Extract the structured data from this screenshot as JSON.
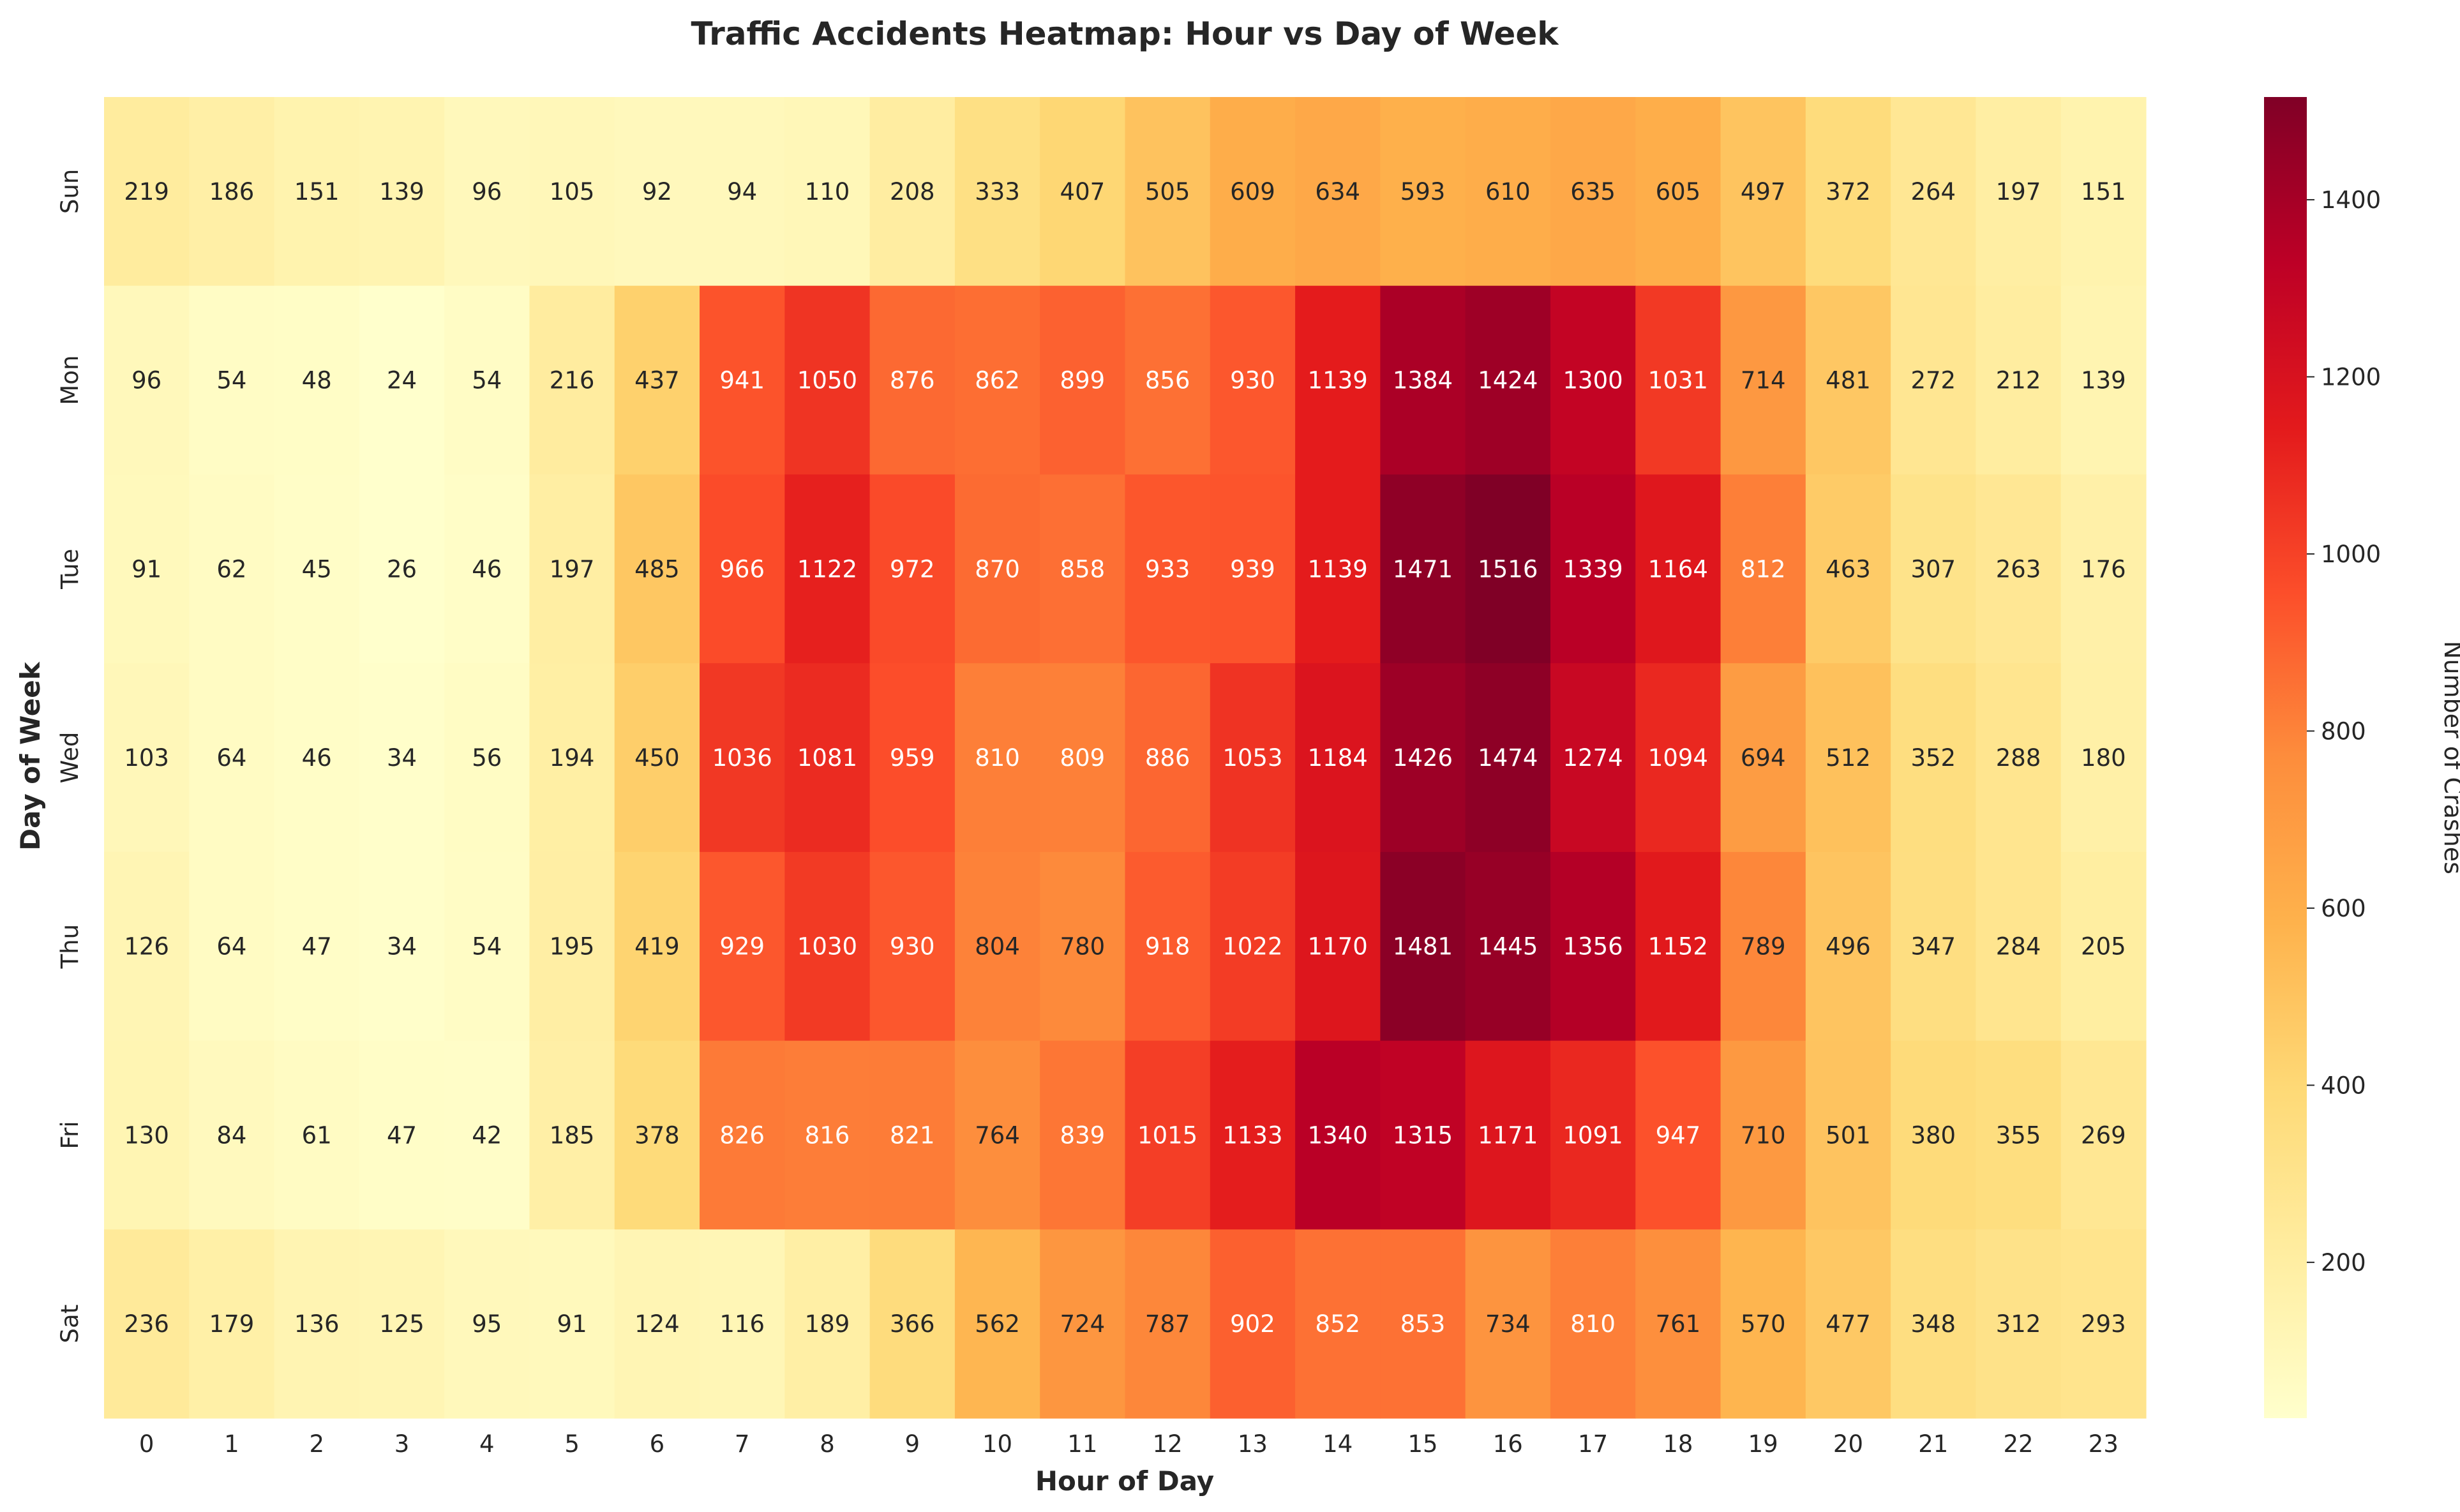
{
  "chart_data": {
    "type": "heatmap",
    "title": "Traffic Accidents Heatmap: Hour vs Day of Week",
    "xlabel": "Hour of Day",
    "ylabel": "Day of Week",
    "x_categories": [
      "0",
      "1",
      "2",
      "3",
      "4",
      "5",
      "6",
      "7",
      "8",
      "9",
      "10",
      "11",
      "12",
      "13",
      "14",
      "15",
      "16",
      "17",
      "18",
      "19",
      "20",
      "21",
      "22",
      "23"
    ],
    "y_categories": [
      "Sun",
      "Mon",
      "Tue",
      "Wed",
      "Thu",
      "Fri",
      "Sat"
    ],
    "values": [
      [
        219,
        186,
        151,
        139,
        96,
        105,
        92,
        94,
        110,
        208,
        333,
        407,
        505,
        609,
        634,
        593,
        610,
        635,
        605,
        497,
        372,
        264,
        197,
        151
      ],
      [
        96,
        54,
        48,
        24,
        54,
        216,
        437,
        941,
        1050,
        876,
        862,
        899,
        856,
        930,
        1139,
        1384,
        1424,
        1300,
        1031,
        714,
        481,
        272,
        212,
        139
      ],
      [
        91,
        62,
        45,
        26,
        46,
        197,
        485,
        966,
        1122,
        972,
        870,
        858,
        933,
        939,
        1139,
        1471,
        1516,
        1339,
        1164,
        812,
        463,
        307,
        263,
        176
      ],
      [
        103,
        64,
        46,
        34,
        56,
        194,
        450,
        1036,
        1081,
        959,
        810,
        809,
        886,
        1053,
        1184,
        1426,
        1474,
        1274,
        1094,
        694,
        512,
        352,
        288,
        180
      ],
      [
        126,
        64,
        47,
        34,
        54,
        195,
        419,
        929,
        1030,
        930,
        804,
        780,
        918,
        1022,
        1170,
        1481,
        1445,
        1356,
        1152,
        789,
        496,
        347,
        284,
        205
      ],
      [
        130,
        84,
        61,
        47,
        42,
        185,
        378,
        826,
        816,
        821,
        764,
        839,
        1015,
        1133,
        1340,
        1315,
        1171,
        1091,
        947,
        710,
        501,
        380,
        355,
        269
      ],
      [
        236,
        179,
        136,
        125,
        95,
        91,
        124,
        116,
        189,
        366,
        562,
        724,
        787,
        902,
        852,
        853,
        734,
        810,
        761,
        570,
        477,
        348,
        312,
        293
      ]
    ],
    "colorscale": "YlOrRd",
    "vmin": 24,
    "vmax": 1516,
    "colorbar": {
      "label": "Number of Crashes",
      "ticks": [
        200,
        400,
        600,
        800,
        1000,
        1200,
        1400
      ]
    }
  }
}
